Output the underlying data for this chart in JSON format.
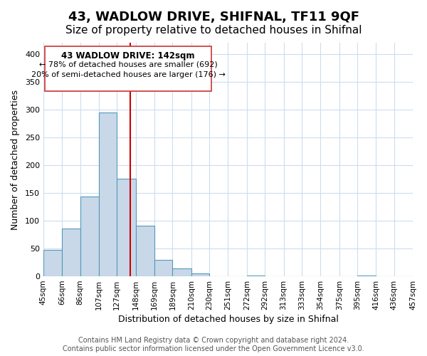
{
  "title": "43, WADLOW DRIVE, SHIFNAL, TF11 9QF",
  "subtitle": "Size of property relative to detached houses in Shifnal",
  "xlabel": "Distribution of detached houses by size in Shifnal",
  "ylabel": "Number of detached properties",
  "bar_edges": [
    45,
    66,
    86,
    107,
    127,
    148,
    169,
    189,
    210,
    230,
    251,
    272,
    292,
    313,
    333,
    354,
    375,
    395,
    416,
    436,
    457
  ],
  "bar_heights": [
    47,
    86,
    144,
    294,
    175,
    91,
    30,
    14,
    5,
    0,
    0,
    2,
    0,
    0,
    0,
    0,
    0,
    2,
    0,
    0
  ],
  "bar_color": "#c8d8e8",
  "bar_edge_color": "#5599bb",
  "vline_x": 142,
  "vline_color": "#cc0000",
  "annotation_title": "43 WADLOW DRIVE: 142sqm",
  "annotation_line1": "← 78% of detached houses are smaller (692)",
  "annotation_line2": "20% of semi-detached houses are larger (176) →",
  "ylim": [
    0,
    420
  ],
  "yticks": [
    0,
    50,
    100,
    150,
    200,
    250,
    300,
    350,
    400
  ],
  "footer_line1": "Contains HM Land Registry data © Crown copyright and database right 2024.",
  "footer_line2": "Contains public sector information licensed under the Open Government Licence v3.0.",
  "title_fontsize": 13,
  "subtitle_fontsize": 11,
  "tick_label_fontsize": 7.5,
  "axis_label_fontsize": 9,
  "footer_fontsize": 7
}
